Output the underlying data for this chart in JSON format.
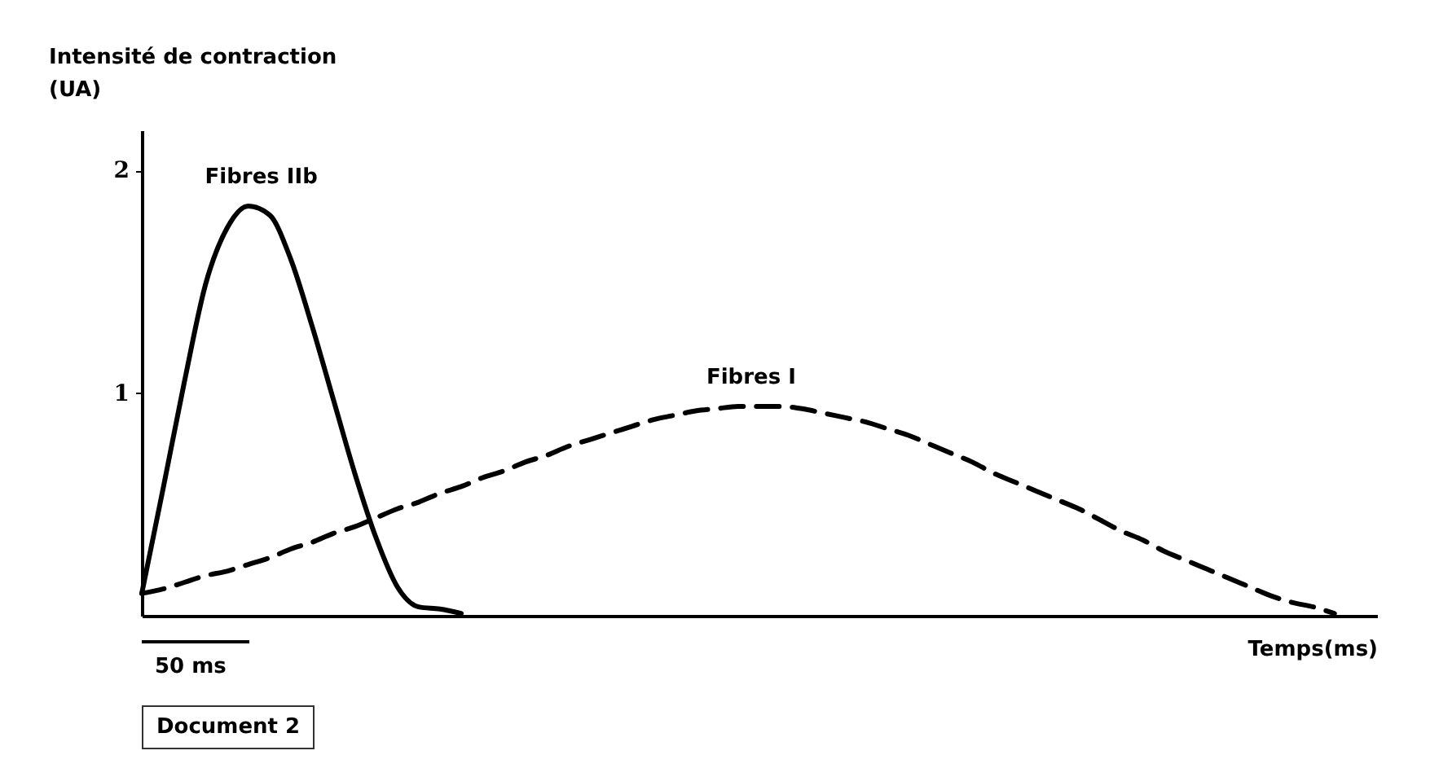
{
  "chart_data": {
    "type": "line",
    "ylabel": "Intensité de contraction (UA)",
    "xlabel": "Temps(ms)",
    "categories": [
      null,
      null,
      null,
      null,
      null,
      null,
      null,
      null,
      null,
      null,
      null,
      null,
      null,
      null,
      null,
      null,
      null,
      null,
      null,
      null,
      null,
      null,
      null,
      null,
      null,
      null,
      null,
      null,
      null,
      null,
      null,
      null,
      null,
      null,
      null,
      null,
      null,
      null,
      null,
      null,
      null,
      null,
      null,
      null,
      null,
      null,
      null,
      null,
      null,
      null,
      null,
      null,
      null,
      null,
      null,
      null,
      null,
      null,
      null
    ],
    "series": [
      {
        "name": "Fibres IIb",
        "color": "#000000",
        "line_style": "solid",
        "values": [
          0.1,
          0.57,
          1.05,
          1.49,
          1.74,
          1.84,
          1.8,
          1.6,
          1.3,
          0.97,
          0.64,
          0.35,
          0.13,
          0.04,
          0.03,
          0.01,
          null,
          null,
          null,
          null,
          null,
          null,
          null,
          null,
          null,
          null,
          null,
          null,
          null,
          null,
          null,
          null,
          null,
          null,
          null,
          null,
          null,
          null,
          null,
          null,
          null,
          null,
          null,
          null,
          null,
          null,
          null,
          null,
          null,
          null,
          null,
          null,
          null,
          null,
          null,
          null,
          null,
          null,
          null
        ]
      },
      {
        "name": "Fibres I",
        "color": "#000000",
        "line_style": "dashed",
        "values": [
          0.1,
          0.12,
          0.15,
          0.18,
          0.2,
          0.23,
          0.26,
          0.3,
          0.33,
          0.37,
          0.4,
          0.44,
          0.48,
          0.51,
          0.55,
          0.58,
          0.62,
          0.65,
          0.69,
          0.72,
          0.76,
          0.79,
          0.82,
          0.85,
          0.88,
          0.9,
          0.92,
          0.93,
          0.94,
          0.94,
          0.94,
          0.93,
          0.91,
          0.89,
          0.87,
          0.84,
          0.81,
          0.77,
          0.73,
          0.69,
          0.64,
          0.6,
          0.56,
          0.52,
          0.48,
          0.43,
          0.38,
          0.34,
          0.29,
          0.25,
          0.21,
          0.17,
          0.13,
          0.09,
          0.06,
          0.04,
          0.01,
          null,
          null
        ]
      }
    ],
    "ylim": [
      0,
      2.18
    ],
    "yticks": [
      1,
      2
    ],
    "grid": false,
    "marker": "none",
    "tick_labels": "y",
    "annotations": [
      "50 ms",
      "Document 2"
    ]
  }
}
